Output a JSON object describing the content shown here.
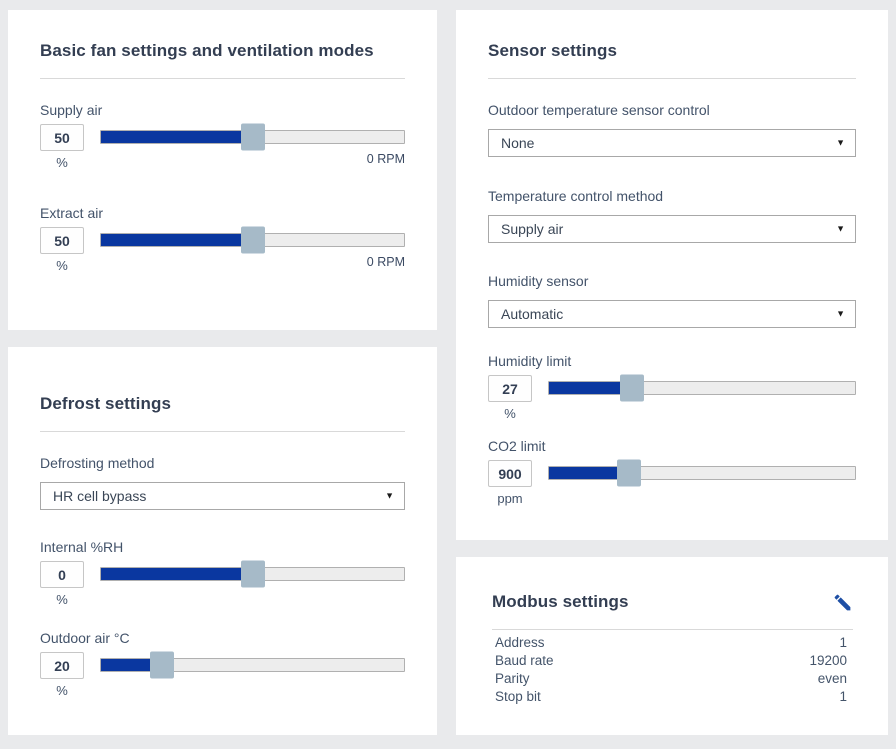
{
  "colors": {
    "accent_blue": "#0a37a0",
    "handle_gray_blue": "#a6bac8",
    "title_navy": "#333e52",
    "pencil_blue": "#1e4fa5",
    "page_bg": "#e9eaec"
  },
  "panels": {
    "basic_fan": {
      "title": "Basic fan settings and ventilation modes",
      "sliders": [
        {
          "label": "Supply air",
          "value": "50",
          "unit": "%",
          "percent": 50,
          "right_label": "0 RPM"
        },
        {
          "label": "Extract air",
          "value": "50",
          "unit": "%",
          "percent": 50,
          "right_label": "0 RPM"
        }
      ]
    },
    "defrost": {
      "title": "Defrost settings",
      "selects": [
        {
          "label": "Defrosting method",
          "value": "HR cell bypass"
        }
      ],
      "sliders": [
        {
          "label": "Internal %RH",
          "value": "0",
          "unit": "%",
          "percent": 50
        },
        {
          "label": "Outdoor air °C",
          "value": "20",
          "unit": "%",
          "percent": 20
        }
      ]
    },
    "sensor": {
      "title": "Sensor settings",
      "selects": [
        {
          "label": "Outdoor temperature sensor control",
          "value": "None"
        },
        {
          "label": "Temperature control method",
          "value": "Supply air"
        },
        {
          "label": "Humidity sensor",
          "value": "Automatic"
        }
      ],
      "sliders": [
        {
          "label": "Humidity limit",
          "value": "27",
          "unit": "%",
          "percent": 27
        },
        {
          "label": "CO2 limit",
          "value": "900",
          "unit": "ppm",
          "percent": 26
        }
      ]
    },
    "modbus": {
      "title": "Modbus settings",
      "edit_icon": "pencil",
      "rows": [
        {
          "label": "Address",
          "value": "1"
        },
        {
          "label": "Baud rate",
          "value": "19200"
        },
        {
          "label": "Parity",
          "value": "even"
        },
        {
          "label": "Stop bit",
          "value": "1"
        }
      ]
    }
  }
}
